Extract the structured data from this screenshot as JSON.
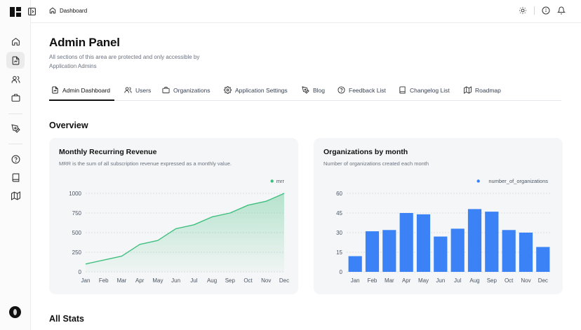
{
  "breadcrumb": {
    "label": "Dashboard"
  },
  "header": {
    "title": "Admin Panel",
    "description": "All sections of this area are protected and only accessible by Application Admins"
  },
  "tabs": [
    {
      "label": "Admin Dashboard",
      "icon": "file-chart-icon",
      "active": true
    },
    {
      "label": "Users",
      "icon": "users-icon"
    },
    {
      "label": "Organizations",
      "icon": "briefcase-icon"
    },
    {
      "label": "Application Settings",
      "icon": "settings-icon"
    },
    {
      "label": "Blog",
      "icon": "pen-icon"
    },
    {
      "label": "Feedback List",
      "icon": "help-circle-icon"
    },
    {
      "label": "Changelog List",
      "icon": "book-icon"
    },
    {
      "label": "Roadmap",
      "icon": "map-icon"
    }
  ],
  "sections": {
    "overview": "Overview",
    "all_stats": "All Stats"
  },
  "colors": {
    "green": "#3fbf7f",
    "blue": "#3b82f6"
  },
  "chart_data": [
    {
      "type": "area",
      "title": "Monthly Recurring Revenue",
      "subtitle": "MRR is the sum of all subscription revenue expressed as a monthly value.",
      "legend": "top-right",
      "categories": [
        "Jan",
        "Feb",
        "Mar",
        "Apr",
        "May",
        "Jun",
        "Jul",
        "Aug",
        "Sep",
        "Oct",
        "Nov",
        "Dec"
      ],
      "yticks": [
        0,
        250,
        500,
        750,
        1000
      ],
      "ylim": [
        0,
        1000
      ],
      "grid": true,
      "series": [
        {
          "name": "mrr",
          "color": "#3fbf7f",
          "values": [
            100,
            150,
            200,
            350,
            400,
            550,
            600,
            700,
            750,
            850,
            900,
            1000
          ]
        }
      ]
    },
    {
      "type": "bar",
      "title": "Organizations by month",
      "subtitle": "Number of organizations created each month",
      "legend": "top-right",
      "categories": [
        "Jan",
        "Feb",
        "Mar",
        "Apr",
        "May",
        "Jun",
        "Jul",
        "Aug",
        "Sep",
        "Oct",
        "Nov",
        "Dec"
      ],
      "yticks": [
        0,
        15,
        30,
        45,
        60
      ],
      "ylim": [
        0,
        60
      ],
      "grid": true,
      "series": [
        {
          "name": "number_of_organizations",
          "color": "#3b82f6",
          "values": [
            12,
            31,
            32,
            45,
            44,
            27,
            33,
            48,
            46,
            32,
            30,
            19
          ]
        }
      ]
    }
  ]
}
